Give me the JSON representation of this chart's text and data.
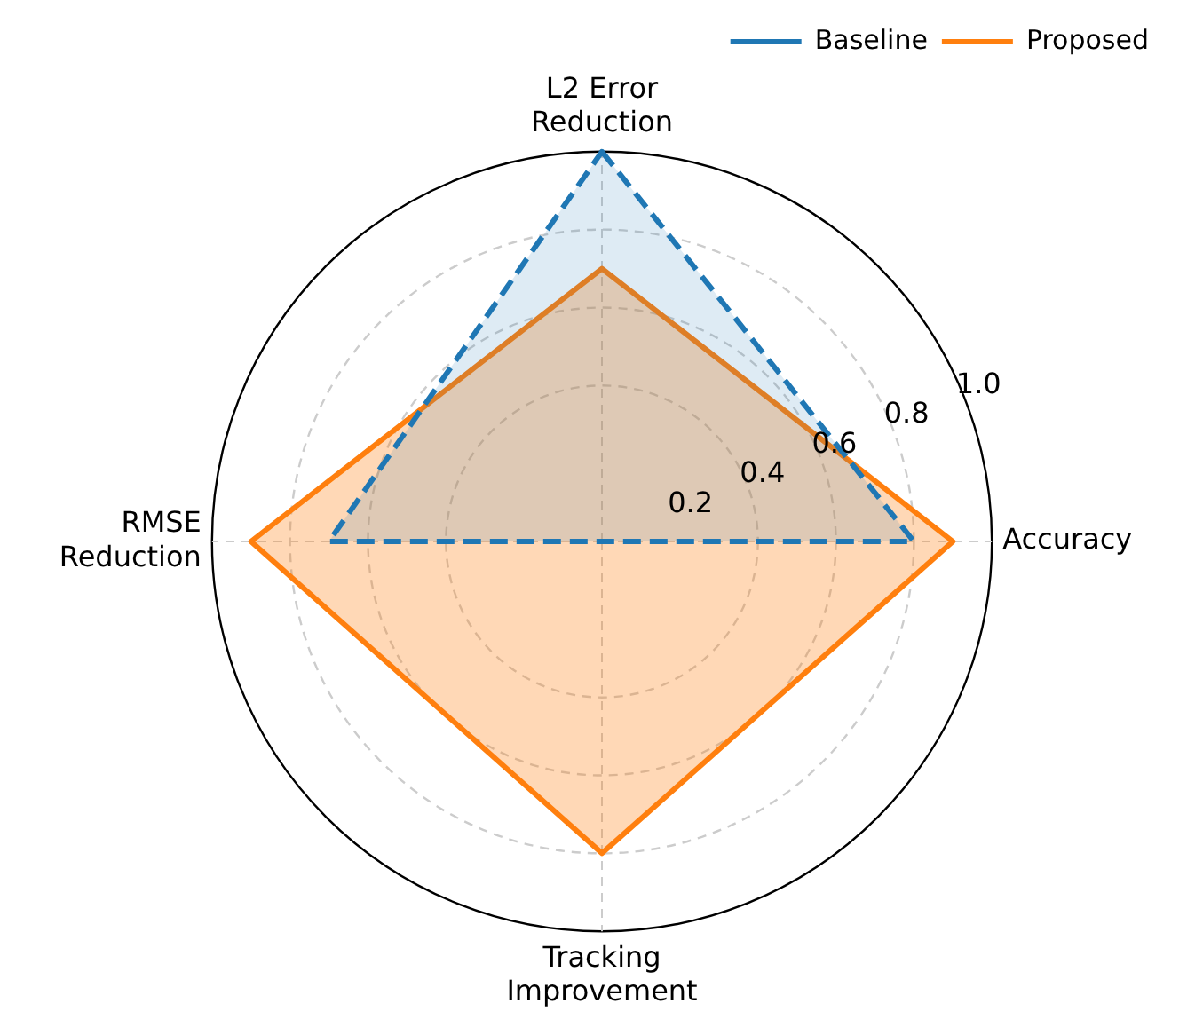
{
  "chart_data": {
    "type": "radar",
    "categories": [
      "L2 Error Reduction",
      "Accuracy",
      "Tracking Improvement",
      "RMSE Reduction"
    ],
    "series": [
      {
        "name": "Baseline",
        "color": "#1f77b4",
        "values": [
          1.0,
          0.8,
          0.0,
          0.7
        ],
        "line_style": "dashed"
      },
      {
        "name": "Proposed",
        "color": "#ff7f0e",
        "values": [
          0.7,
          0.9,
          0.8,
          0.9
        ],
        "line_style": "solid"
      }
    ],
    "ylim": [
      0,
      1.0
    ],
    "yticks": [
      {
        "value": 0.2,
        "label": "0.2"
      },
      {
        "value": 0.4,
        "label": "0.4"
      },
      {
        "value": 0.6,
        "label": "0.6"
      },
      {
        "value": 0.8,
        "label": "0.8"
      },
      {
        "value": 1.0,
        "label": "1.0"
      }
    ],
    "grid": true,
    "legend": "top right",
    "marker": "none"
  }
}
